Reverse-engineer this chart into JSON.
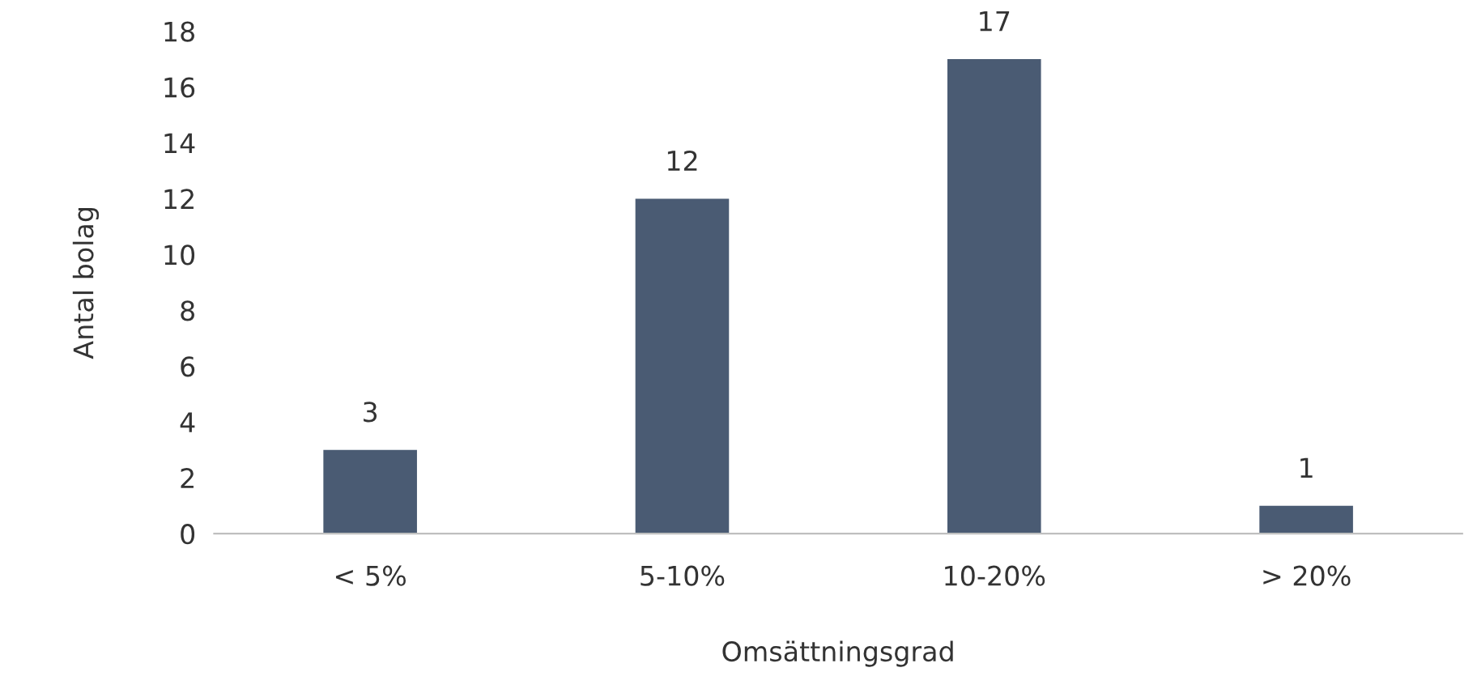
{
  "chart_data": {
    "type": "bar",
    "xlabel": "Omsättningsgrad",
    "ylabel": "Antal bolag",
    "categories": [
      "< 5%",
      "5-10%",
      "10-20%",
      "> 20%"
    ],
    "values": [
      3,
      12,
      17,
      1
    ],
    "color": "#4a5b73",
    "ylim": [
      0,
      18
    ],
    "yticks": [
      0,
      2,
      4,
      6,
      8,
      10,
      12,
      14,
      16,
      18
    ],
    "grid": false,
    "data_labels": true
  }
}
